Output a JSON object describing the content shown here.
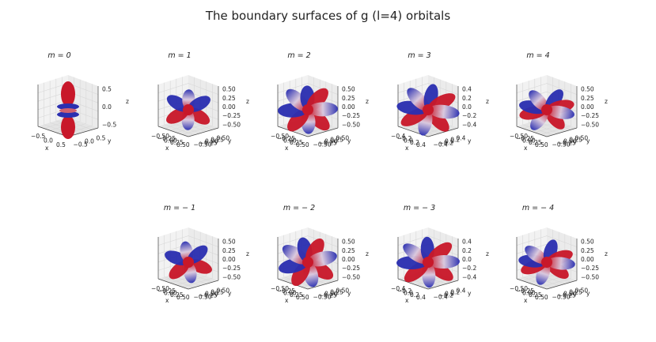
{
  "title": "The boundary surfaces of g (l=4) orbitals",
  "colors": {
    "positive": "#c8182a",
    "negative": "#2b2fb0",
    "pane": "#f2f2f2",
    "grid": "#d8d8d8"
  },
  "chart_data": [
    {
      "type": "surface3d",
      "title": "m = 0",
      "m": 0,
      "ticks": {
        "z": [
          "0.5",
          "0.0",
          "−0.5"
        ],
        "y": [
          "0.5",
          "0.0",
          "−0.5"
        ],
        "x": [
          "−0.5",
          "0.0",
          "0.5"
        ]
      },
      "axis_labels": {
        "x": "x",
        "y": "y",
        "z": "z"
      }
    },
    {
      "type": "surface3d",
      "title": "m = 1",
      "m": 1,
      "ticks": {
        "z": [
          "0.50",
          "0.25",
          "0.00",
          "−0.25",
          "−0.50"
        ],
        "y": [
          "0.50",
          "0.25",
          "0.00",
          "−0.25",
          "−0.50"
        ],
        "x": [
          "−0.50",
          "−0.25",
          "0.00",
          "0.25",
          "0.50"
        ]
      },
      "axis_labels": {
        "x": "x",
        "y": "y",
        "z": "z"
      }
    },
    {
      "type": "surface3d",
      "title": "m = 2",
      "m": 2,
      "ticks": {
        "z": [
          "0.50",
          "0.25",
          "0.00",
          "−0.25",
          "−0.50"
        ],
        "y": [
          "0.50",
          "0.25",
          "0.00",
          "−0.25",
          "−0.50"
        ],
        "x": [
          "−0.50",
          "−0.25",
          "0.00",
          "0.25",
          "0.50"
        ]
      },
      "axis_labels": {
        "x": "x",
        "y": "y",
        "z": "z"
      }
    },
    {
      "type": "surface3d",
      "title": "m = 3",
      "m": 3,
      "ticks": {
        "z": [
          "0.4",
          "0.2",
          "0.0",
          "−0.2",
          "−0.4"
        ],
        "y": [
          "0.4",
          "0.2",
          "0.0",
          "−0.2",
          "−0.4"
        ],
        "x": [
          "−0.4",
          "−0.2",
          "0.0",
          "0.2",
          "0.4"
        ]
      },
      "axis_labels": {
        "x": "x",
        "y": "y",
        "z": "z"
      }
    },
    {
      "type": "surface3d",
      "title": "m = 4",
      "m": 4,
      "ticks": {
        "z": [
          "0.50",
          "0.25",
          "0.00",
          "−0.25",
          "−0.50"
        ],
        "y": [
          "0.50",
          "0.25",
          "0.00",
          "−0.25",
          "−0.50"
        ],
        "x": [
          "−0.50",
          "−0.25",
          "0.00",
          "0.25",
          "0.50"
        ]
      },
      "axis_labels": {
        "x": "x",
        "y": "y",
        "z": "z"
      }
    },
    {
      "type": "surface3d",
      "title": "m = − 1",
      "m": -1,
      "ticks": {
        "z": [
          "0.50",
          "0.25",
          "0.00",
          "−0.25",
          "−0.50"
        ],
        "y": [
          "0.50",
          "0.25",
          "0.00",
          "−0.25",
          "−0.50"
        ],
        "x": [
          "−0.50",
          "−0.25",
          "0.00",
          "0.25",
          "0.50"
        ]
      },
      "axis_labels": {
        "x": "x",
        "y": "y",
        "z": "z"
      }
    },
    {
      "type": "surface3d",
      "title": "m = − 2",
      "m": -2,
      "ticks": {
        "z": [
          "0.50",
          "0.25",
          "0.00",
          "−0.25",
          "−0.50"
        ],
        "y": [
          "0.50",
          "0.25",
          "0.00",
          "−0.25",
          "−0.50"
        ],
        "x": [
          "−0.50",
          "−0.25",
          "0.00",
          "0.25",
          "0.50"
        ]
      },
      "axis_labels": {
        "x": "x",
        "y": "y",
        "z": "z"
      }
    },
    {
      "type": "surface3d",
      "title": "m = − 3",
      "m": -3,
      "ticks": {
        "z": [
          "0.4",
          "0.2",
          "0.0",
          "−0.2",
          "−0.4"
        ],
        "y": [
          "0.4",
          "0.2",
          "0.0",
          "−0.2",
          "−0.4"
        ],
        "x": [
          "−0.4",
          "−0.2",
          "0.0",
          "0.2",
          "0.4"
        ]
      },
      "axis_labels": {
        "x": "x",
        "y": "y",
        "z": "z"
      }
    },
    {
      "type": "surface3d",
      "title": "m = − 4",
      "m": -4,
      "ticks": {
        "z": [
          "0.50",
          "0.25",
          "0.00",
          "−0.25",
          "−0.50"
        ],
        "y": [
          "0.50",
          "0.25",
          "0.00",
          "−0.25",
          "−0.50"
        ],
        "x": [
          "−0.50",
          "−0.25",
          "0.00",
          "0.25",
          "0.50"
        ]
      },
      "axis_labels": {
        "x": "x",
        "y": "y",
        "z": "z"
      }
    }
  ]
}
